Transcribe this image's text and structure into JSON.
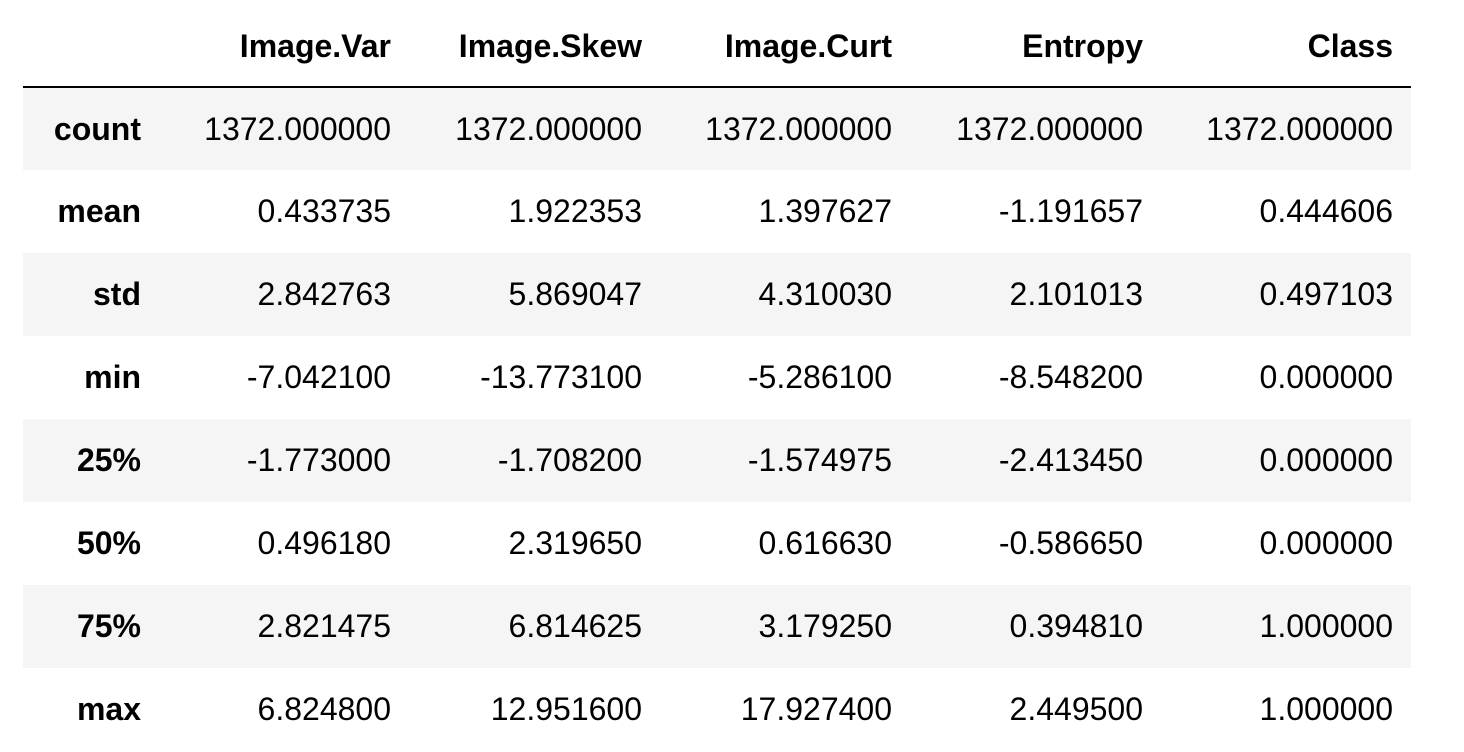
{
  "table": {
    "index_header": "",
    "columns": [
      "Image.Var",
      "Image.Skew",
      "Image.Curt",
      "Entropy",
      "Class"
    ],
    "rows": [
      {
        "label": "count",
        "values": [
          "1372.000000",
          "1372.000000",
          "1372.000000",
          "1372.000000",
          "1372.000000"
        ]
      },
      {
        "label": "mean",
        "values": [
          "0.433735",
          "1.922353",
          "1.397627",
          "-1.191657",
          "0.444606"
        ]
      },
      {
        "label": "std",
        "values": [
          "2.842763",
          "5.869047",
          "4.310030",
          "2.101013",
          "0.497103"
        ]
      },
      {
        "label": "min",
        "values": [
          "-7.042100",
          "-13.773100",
          "-5.286100",
          "-8.548200",
          "0.000000"
        ]
      },
      {
        "label": "25%",
        "values": [
          "-1.773000",
          "-1.708200",
          "-1.574975",
          "-2.413450",
          "0.000000"
        ]
      },
      {
        "label": "50%",
        "values": [
          "0.496180",
          "2.319650",
          "0.616630",
          "-0.586650",
          "0.000000"
        ]
      },
      {
        "label": "75%",
        "values": [
          "2.821475",
          "6.814625",
          "3.179250",
          "0.394810",
          "1.000000"
        ]
      },
      {
        "label": "max",
        "values": [
          "6.824800",
          "12.951600",
          "17.927400",
          "2.449500",
          "1.000000"
        ]
      }
    ]
  },
  "colors": {
    "stripe": "#f5f5f5",
    "background": "#ffffff",
    "text": "#000000",
    "header_rule": "#000000"
  }
}
